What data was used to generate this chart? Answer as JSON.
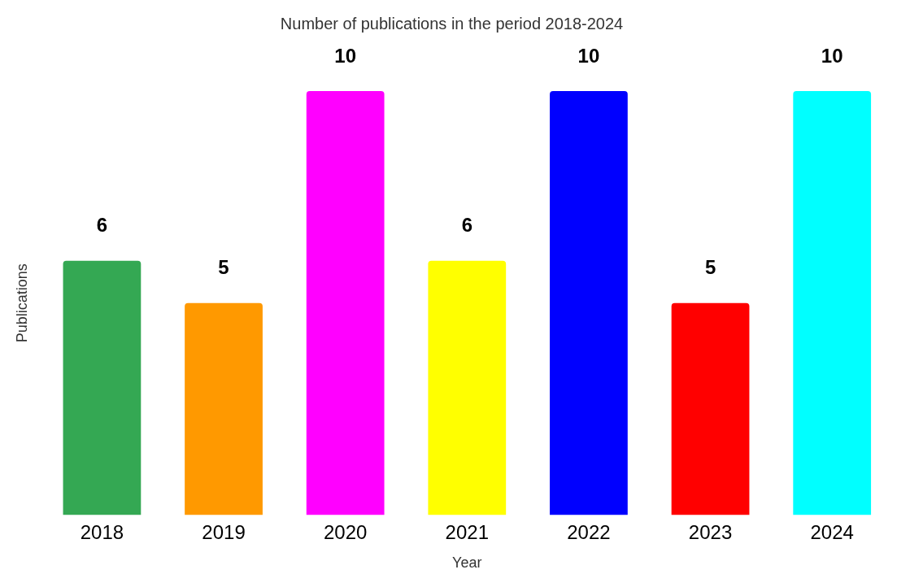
{
  "chart_data": {
    "type": "bar",
    "title": "Number of publications in the period 2018-2024",
    "xlabel": "Year",
    "ylabel": "Publications",
    "categories": [
      "2018",
      "2019",
      "2020",
      "2021",
      "2022",
      "2023",
      "2024"
    ],
    "values": [
      6,
      5,
      10,
      6,
      10,
      5,
      10
    ],
    "colors": [
      "#34a853",
      "#ff9900",
      "#ff00ff",
      "#ffff00",
      "#0000ff",
      "#ff0000",
      "#00ffff"
    ],
    "data_labels": true,
    "grid": false,
    "legend": false
  }
}
